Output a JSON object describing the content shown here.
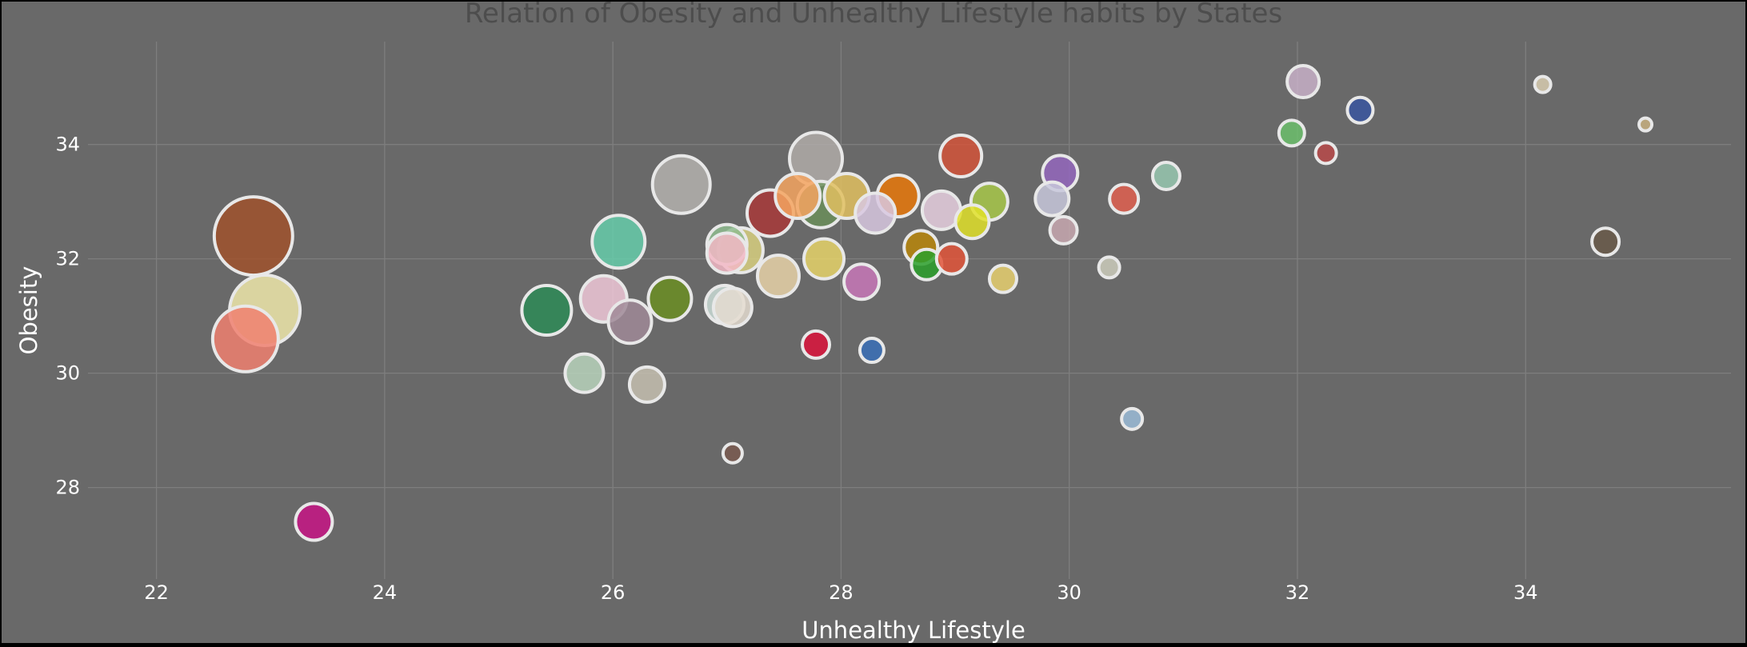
{
  "chart_data": {
    "type": "scatter",
    "title": "Relation of Obesity and Unhealthy Lifestyle habits by States",
    "xlabel": "Unhealthy Lifestyle",
    "ylabel": "Obesity",
    "xlim": [
      21.4,
      35.8
    ],
    "ylim": [
      26.4,
      35.8
    ],
    "x_ticks": [
      22,
      24,
      26,
      28,
      30,
      32,
      34
    ],
    "y_ticks": [
      28,
      30,
      32,
      34
    ],
    "grid": true,
    "legend": "none",
    "background_color": "#696969",
    "points": [
      {
        "x": 22.85,
        "y": 32.4,
        "size": 49,
        "color": "#a0522d"
      },
      {
        "x": 22.95,
        "y": 31.1,
        "size": 44,
        "color": "#eee8aa"
      },
      {
        "x": 22.78,
        "y": 30.6,
        "size": 41,
        "color": "#f08070"
      },
      {
        "x": 23.38,
        "y": 27.4,
        "size": 23,
        "color": "#c71585"
      },
      {
        "x": 25.42,
        "y": 31.1,
        "size": 31,
        "color": "#2e8b57"
      },
      {
        "x": 25.75,
        "y": 30.0,
        "size": 24,
        "color": "#b8d4bc"
      },
      {
        "x": 25.92,
        "y": 31.3,
        "size": 29,
        "color": "#f0c8d8"
      },
      {
        "x": 26.05,
        "y": 32.3,
        "size": 33,
        "color": "#66cdaa"
      },
      {
        "x": 26.15,
        "y": 30.9,
        "size": 27,
        "color": "#a08a98"
      },
      {
        "x": 26.3,
        "y": 29.8,
        "size": 22,
        "color": "#c6c0b0"
      },
      {
        "x": 26.5,
        "y": 31.3,
        "size": 27,
        "color": "#6b8e23"
      },
      {
        "x": 26.6,
        "y": 33.3,
        "size": 36,
        "color": "#b4b2ae"
      },
      {
        "x": 26.98,
        "y": 31.2,
        "size": 24,
        "color": "#cadcd6"
      },
      {
        "x": 27.05,
        "y": 31.15,
        "size": 24,
        "color": "#e4dcd0"
      },
      {
        "x": 27.0,
        "y": 32.25,
        "size": 25,
        "color": "#8fbc8f"
      },
      {
        "x": 27.0,
        "y": 32.1,
        "size": 25,
        "color": "#f2b8c6"
      },
      {
        "x": 27.12,
        "y": 32.15,
        "size": 28,
        "color": "#d8d080"
      },
      {
        "x": 27.05,
        "y": 28.6,
        "size": 12,
        "color": "#7a5a50"
      },
      {
        "x": 27.38,
        "y": 32.8,
        "size": 29,
        "color": "#a83a3a"
      },
      {
        "x": 27.45,
        "y": 31.7,
        "size": 26,
        "color": "#e8d2a8"
      },
      {
        "x": 27.62,
        "y": 33.1,
        "size": 28,
        "color": "#f4a460"
      },
      {
        "x": 27.78,
        "y": 33.75,
        "size": 33,
        "color": "#b0aca8"
      },
      {
        "x": 27.82,
        "y": 32.95,
        "size": 29,
        "color": "#6b8e5a"
      },
      {
        "x": 27.85,
        "y": 32.0,
        "size": 25,
        "color": "#e6d36a"
      },
      {
        "x": 27.78,
        "y": 30.5,
        "size": 17,
        "color": "#dc143c"
      },
      {
        "x": 28.05,
        "y": 33.1,
        "size": 28,
        "color": "#e0c060"
      },
      {
        "x": 28.18,
        "y": 31.6,
        "size": 22,
        "color": "#c878b8"
      },
      {
        "x": 28.3,
        "y": 32.8,
        "size": 25,
        "color": "#d8c8e0"
      },
      {
        "x": 28.27,
        "y": 30.4,
        "size": 15,
        "color": "#3a70b8"
      },
      {
        "x": 28.5,
        "y": 33.1,
        "size": 26,
        "color": "#e8780a"
      },
      {
        "x": 28.7,
        "y": 32.2,
        "size": 21,
        "color": "#b8860b"
      },
      {
        "x": 28.75,
        "y": 31.9,
        "size": 19,
        "color": "#2ca02c"
      },
      {
        "x": 28.88,
        "y": 32.85,
        "size": 24,
        "color": "#e8d0e0"
      },
      {
        "x": 28.97,
        "y": 32.0,
        "size": 19,
        "color": "#e2553a"
      },
      {
        "x": 29.05,
        "y": 33.8,
        "size": 26,
        "color": "#d2543a"
      },
      {
        "x": 29.15,
        "y": 32.65,
        "size": 21,
        "color": "#e0e02a"
      },
      {
        "x": 29.3,
        "y": 33.0,
        "size": 23,
        "color": "#a8c84a"
      },
      {
        "x": 29.42,
        "y": 31.65,
        "size": 17,
        "color": "#e8d070"
      },
      {
        "x": 29.85,
        "y": 33.05,
        "size": 21,
        "color": "#c8c8dc"
      },
      {
        "x": 29.92,
        "y": 33.5,
        "size": 22,
        "color": "#9467bd"
      },
      {
        "x": 29.95,
        "y": 32.5,
        "size": 17,
        "color": "#c8a8b0"
      },
      {
        "x": 30.35,
        "y": 31.85,
        "size": 13,
        "color": "#ccccbc"
      },
      {
        "x": 30.48,
        "y": 33.05,
        "size": 18,
        "color": "#e06050"
      },
      {
        "x": 30.55,
        "y": 29.2,
        "size": 13,
        "color": "#9bbcd8"
      },
      {
        "x": 30.85,
        "y": 33.45,
        "size": 17,
        "color": "#98c8b0"
      },
      {
        "x": 31.95,
        "y": 34.2,
        "size": 16,
        "color": "#6cc06c"
      },
      {
        "x": 32.05,
        "y": 35.1,
        "size": 20,
        "color": "#c8b0c8"
      },
      {
        "x": 32.25,
        "y": 33.85,
        "size": 13,
        "color": "#b84a4a"
      },
      {
        "x": 32.55,
        "y": 34.6,
        "size": 16,
        "color": "#3a56a0"
      },
      {
        "x": 34.15,
        "y": 35.05,
        "size": 10,
        "color": "#d8ccb0"
      },
      {
        "x": 34.7,
        "y": 32.3,
        "size": 17,
        "color": "#6a5a4a"
      },
      {
        "x": 35.05,
        "y": 34.35,
        "size": 8,
        "color": "#c8b080"
      }
    ]
  }
}
